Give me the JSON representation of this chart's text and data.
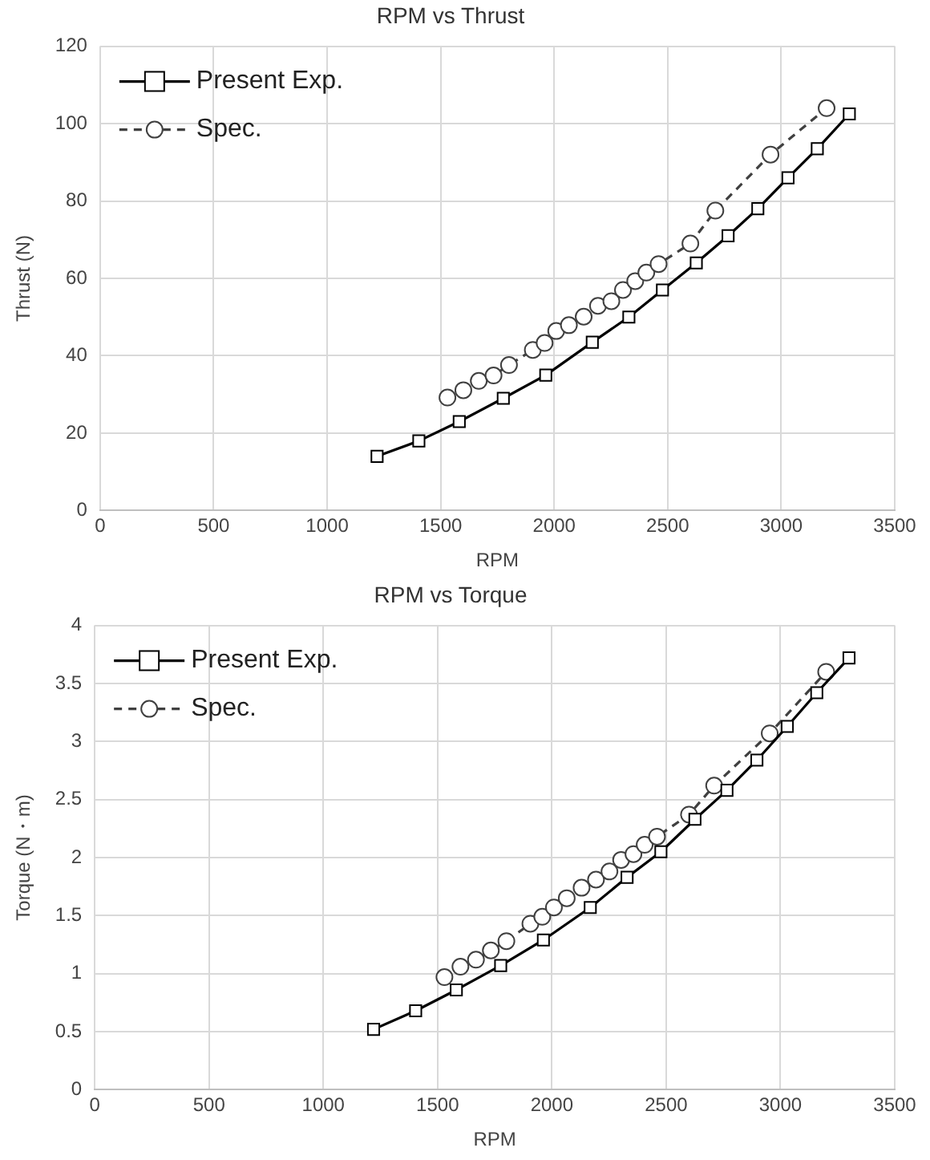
{
  "chart_data": [
    {
      "type": "line",
      "title": "RPM vs Thrust",
      "xlabel": "RPM",
      "ylabel": "Thrust (N)",
      "xlim": [
        0,
        3500
      ],
      "xticks": [
        0,
        500,
        1000,
        1500,
        2000,
        2500,
        3000,
        3500
      ],
      "ylim": [
        0,
        120
      ],
      "yticks": [
        0,
        20,
        40,
        60,
        80,
        100,
        120
      ],
      "grid": true,
      "legend": "top left",
      "series": [
        {
          "name": "Present Exp.",
          "color": "#000000",
          "marker": "square",
          "line_style": "solid",
          "x": [
            1220,
            1404,
            1582,
            1776,
            1963,
            2168,
            2329,
            2477,
            2626,
            2766,
            2897,
            3030,
            3159,
            3300
          ],
          "values": [
            14,
            18,
            23,
            29,
            35,
            43.5,
            50,
            57,
            64,
            71,
            78,
            86,
            93.5,
            102.5
          ]
        },
        {
          "name": "Spec.",
          "color": "#404040",
          "marker": "circle",
          "line_style": "dashed",
          "x": [
            1530,
            1600,
            1668,
            1733,
            1801,
            1906,
            1958,
            2009,
            2065,
            2130,
            2193,
            2252,
            2303,
            2357,
            2406,
            2460,
            2600,
            2710,
            2953,
            3200
          ],
          "values": [
            29.2,
            31.1,
            33.5,
            34.9,
            37.6,
            41.5,
            43.3,
            46.4,
            47.9,
            50.1,
            52.9,
            54.1,
            57,
            59.3,
            61.5,
            63.7,
            69,
            77.5,
            92,
            104
          ]
        }
      ]
    },
    {
      "type": "line",
      "title": "RPM vs Torque",
      "xlabel": "RPM",
      "ylabel": "Torque (N・m)",
      "xlim": [
        0,
        3500
      ],
      "xticks": [
        0,
        500,
        1000,
        1500,
        2000,
        2500,
        3000,
        3500
      ],
      "ylim": [
        0,
        4
      ],
      "yticks": [
        0,
        0.5,
        1,
        1.5,
        2,
        2.5,
        3,
        3.5,
        4
      ],
      "grid": true,
      "legend": "top left",
      "series": [
        {
          "name": "Present Exp.",
          "color": "#000000",
          "marker": "square",
          "line_style": "solid",
          "x": [
            1220,
            1404,
            1582,
            1776,
            1963,
            2168,
            2329,
            2477,
            2626,
            2766,
            2897,
            3030,
            3159,
            3300
          ],
          "values": [
            0.52,
            0.68,
            0.86,
            1.07,
            1.29,
            1.57,
            1.83,
            2.05,
            2.33,
            2.58,
            2.84,
            3.13,
            3.42,
            3.72
          ]
        },
        {
          "name": "Spec.",
          "color": "#404040",
          "marker": "circle",
          "line_style": "dashed",
          "x": [
            1530,
            1600,
            1668,
            1733,
            1801,
            1906,
            1958,
            2009,
            2065,
            2130,
            2193,
            2252,
            2303,
            2357,
            2406,
            2460,
            2600,
            2710,
            2953,
            3200
          ],
          "values": [
            0.97,
            1.06,
            1.12,
            1.2,
            1.28,
            1.43,
            1.49,
            1.57,
            1.65,
            1.74,
            1.81,
            1.88,
            1.98,
            2.03,
            2.11,
            2.18,
            2.37,
            2.62,
            3.07,
            3.6
          ]
        }
      ]
    }
  ]
}
